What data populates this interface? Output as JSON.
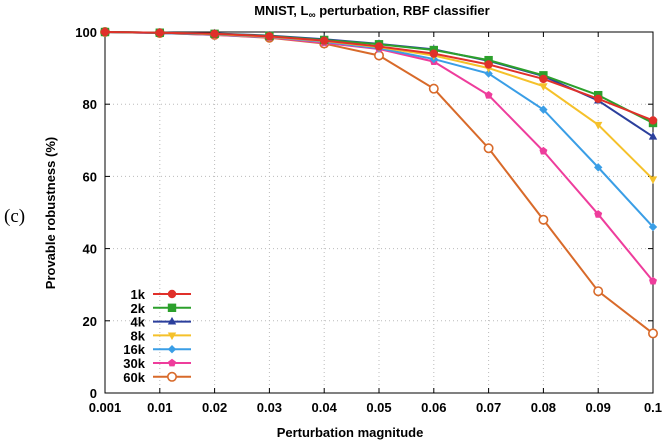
{
  "panel_label": "(c)",
  "chart_data": {
    "type": "line",
    "title_parts": [
      "MNIST, L",
      "∞",
      " perturbation, RBF classifier"
    ],
    "xlabel": "Perturbation magnitude",
    "ylabel": "Provable robustness (%)",
    "categories": [
      "0.001",
      "0.01",
      "0.02",
      "0.03",
      "0.04",
      "0.05",
      "0.06",
      "0.07",
      "0.08",
      "0.09",
      "0.1"
    ],
    "ylim": [
      0,
      100
    ],
    "yticks": [
      0,
      20,
      40,
      60,
      80,
      100
    ],
    "grid": true,
    "legend_position": "bottom-left",
    "series": [
      {
        "name": "1k",
        "color": "#e0302a",
        "marker": "circle-filled",
        "values": [
          100,
          99.8,
          99.5,
          98.8,
          97.6,
          96.0,
          94.0,
          91.0,
          87.0,
          81.5,
          75.5
        ]
      },
      {
        "name": "2k",
        "color": "#2ca02c",
        "marker": "square-filled",
        "values": [
          100,
          99.8,
          99.5,
          98.9,
          97.8,
          96.6,
          95.0,
          92.2,
          88.0,
          82.5,
          74.8
        ]
      },
      {
        "name": "4k",
        "color": "#2b3f9c",
        "marker": "triangle-filled",
        "values": [
          100,
          99.8,
          99.6,
          99.0,
          98.0,
          96.7,
          95.2,
          92.0,
          87.8,
          81.0,
          71.0
        ]
      },
      {
        "name": "8k",
        "color": "#f5c12a",
        "marker": "triangle-down",
        "values": [
          100,
          99.8,
          99.4,
          98.7,
          97.5,
          95.8,
          93.5,
          90.0,
          85.0,
          74.3,
          59.2
        ]
      },
      {
        "name": "16k",
        "color": "#3a9ee6",
        "marker": "diamond-filled",
        "values": [
          100,
          99.7,
          99.3,
          98.6,
          97.3,
          95.5,
          92.5,
          88.5,
          78.5,
          62.5,
          46.0
        ]
      },
      {
        "name": "30k",
        "color": "#ee3d9c",
        "marker": "pentagon-filled",
        "values": [
          100,
          99.7,
          99.2,
          98.5,
          97.0,
          95.3,
          91.8,
          82.5,
          67.0,
          49.5,
          31.0
        ]
      },
      {
        "name": "60k",
        "color": "#d86a2a",
        "marker": "circle-open",
        "values": [
          100,
          99.7,
          99.2,
          98.4,
          96.8,
          93.5,
          84.3,
          67.8,
          48.0,
          28.2,
          16.5
        ]
      }
    ]
  }
}
